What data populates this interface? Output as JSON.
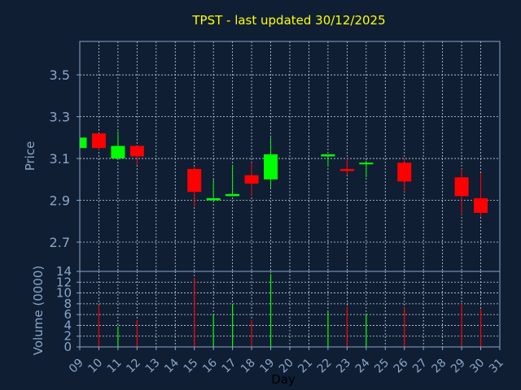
{
  "chart_data": {
    "type": "candlestick",
    "title": "TPST - last updated 30/12/2025",
    "xlabel": "Day",
    "colors": {
      "background": "#0f1e33",
      "axis": "#8aa6c8",
      "grid": "#c8d4e4",
      "title": "#ffff00",
      "up": "#00ff00",
      "down": "#ff0000"
    },
    "x_ticks": [
      "09",
      "10",
      "11",
      "12",
      "13",
      "14",
      "15",
      "16",
      "17",
      "18",
      "19",
      "20",
      "21",
      "22",
      "23",
      "24",
      "25",
      "26",
      "27",
      "28",
      "29",
      "30",
      "31"
    ],
    "price": {
      "ylabel": "Price",
      "ylim": [
        2.56,
        3.66
      ],
      "yticks": [
        2.7,
        2.9,
        3.1,
        3.3,
        3.5
      ],
      "ytick_labels": [
        "2.7",
        "2.9",
        "3.1",
        "3.3",
        "3.5"
      ]
    },
    "volume": {
      "ylabel": "Volume (0000)",
      "ylim": [
        0,
        14
      ],
      "yticks": [
        0,
        2,
        4,
        6,
        8,
        10,
        12,
        14
      ],
      "ytick_labels": [
        "0",
        "2",
        "4",
        "6",
        "8",
        "10",
        "12",
        "14"
      ]
    },
    "candles": [
      {
        "day": 9,
        "open": 3.15,
        "high": 3.2,
        "low": 3.15,
        "close": 3.2,
        "volume": 0
      },
      {
        "day": 10,
        "open": 3.22,
        "high": 3.22,
        "low": 3.14,
        "close": 3.15,
        "volume": 7.8
      },
      {
        "day": 11,
        "open": 3.1,
        "high": 3.23,
        "low": 3.1,
        "close": 3.16,
        "volume": 3.8
      },
      {
        "day": 12,
        "open": 3.16,
        "high": 3.16,
        "low": 3.07,
        "close": 3.11,
        "volume": 5.0
      },
      {
        "day": 15,
        "open": 3.05,
        "high": 3.06,
        "low": 2.87,
        "close": 2.94,
        "volume": 12.8
      },
      {
        "day": 16,
        "open": 2.9,
        "high": 3.0,
        "low": 2.9,
        "close": 2.91,
        "volume": 6.0
      },
      {
        "day": 17,
        "open": 2.92,
        "high": 3.07,
        "low": 2.92,
        "close": 2.93,
        "volume": 8.0
      },
      {
        "day": 18,
        "open": 3.02,
        "high": 3.08,
        "low": 2.92,
        "close": 2.98,
        "volume": 5.0
      },
      {
        "day": 19,
        "open": 3.0,
        "high": 3.2,
        "low": 2.96,
        "close": 3.12,
        "volume": 13.5
      },
      {
        "day": 22,
        "open": 3.11,
        "high": 3.12,
        "low": 3.06,
        "close": 3.12,
        "volume": 6.5
      },
      {
        "day": 23,
        "open": 3.05,
        "high": 3.1,
        "low": 3.02,
        "close": 3.04,
        "volume": 7.5
      },
      {
        "day": 24,
        "open": 3.08,
        "high": 3.09,
        "low": 3.01,
        "close": 3.08,
        "volume": 6.2
      },
      {
        "day": 26,
        "open": 3.08,
        "high": 3.1,
        "low": 2.94,
        "close": 2.99,
        "volume": 7.3
      },
      {
        "day": 29,
        "open": 3.01,
        "high": 3.05,
        "low": 2.83,
        "close": 2.92,
        "volume": 8.0
      },
      {
        "day": 30,
        "open": 2.91,
        "high": 3.03,
        "low": 2.82,
        "close": 2.84,
        "volume": 7.0
      }
    ]
  }
}
